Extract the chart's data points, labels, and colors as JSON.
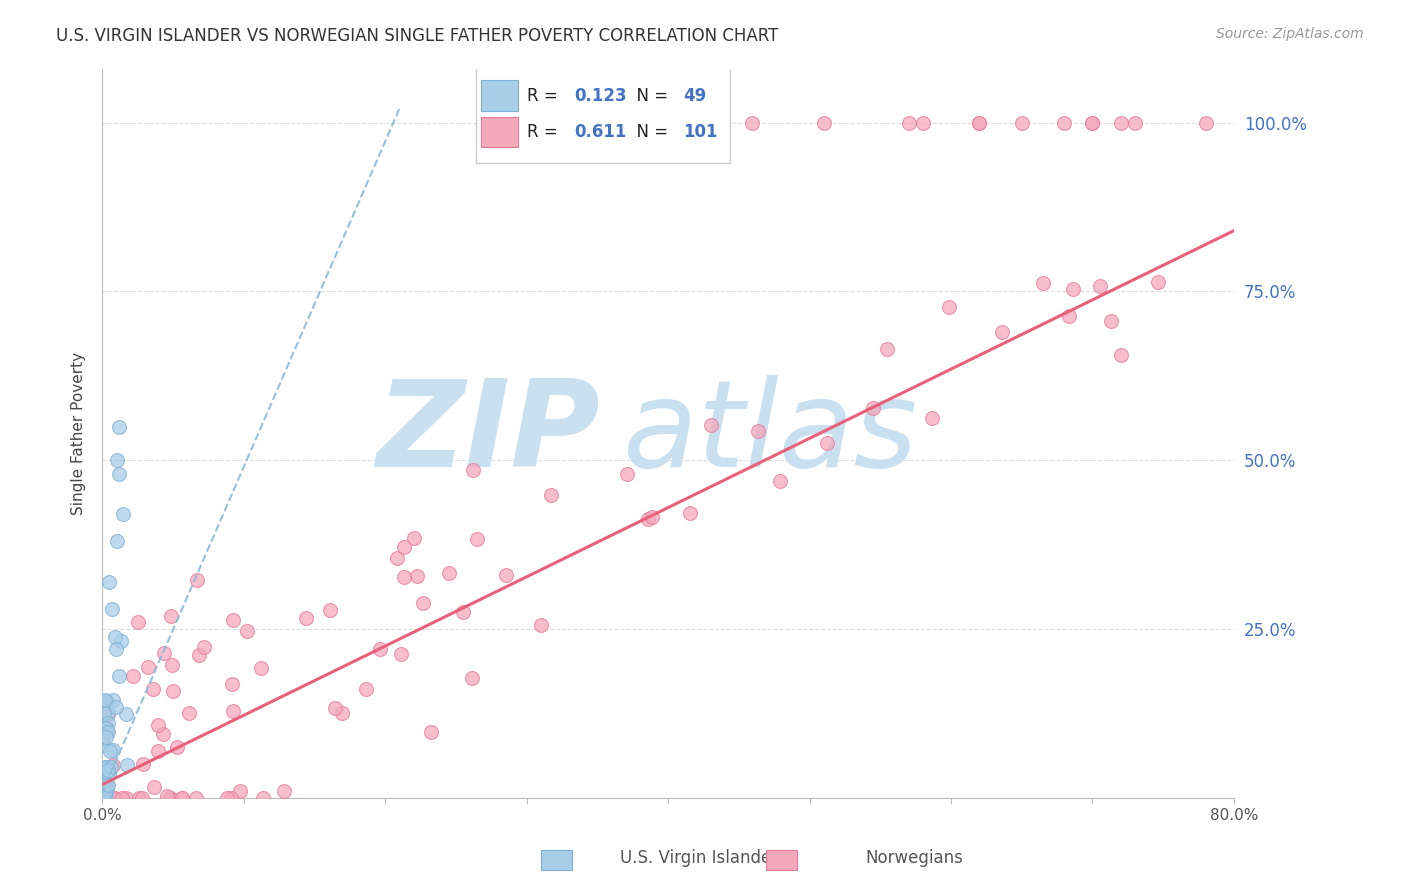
{
  "title": "U.S. VIRGIN ISLANDER VS NORWEGIAN SINGLE FATHER POVERTY CORRELATION CHART",
  "source": "Source: ZipAtlas.com",
  "ylabel": "Single Father Poverty",
  "xlabel_blue": "U.S. Virgin Islanders",
  "xlabel_pink": "Norwegians",
  "r_blue": 0.123,
  "n_blue": 49,
  "r_pink": 0.611,
  "n_pink": 101,
  "xmin": 0.0,
  "xmax": 0.8,
  "ymin": 0.0,
  "ymax": 1.08,
  "color_blue": "#a8cde8",
  "color_blue_edge": "#7bafd4",
  "color_pink": "#f4a8bc",
  "color_pink_edge": "#e87898",
  "color_pink_line": "#e8607a",
  "color_blue_line": "#88bbd8",
  "watermark_zip_color": "#c8e0f0",
  "watermark_atlas_color": "#c8e0f0",
  "title_color": "#333333",
  "source_color": "#999999",
  "ylabel_color": "#444444",
  "right_tick_color": "#4472c4",
  "xtick_color": "#555555",
  "legend_text_color": "#222222",
  "legend_value_color": "#4472c4",
  "grid_color": "#dddddd"
}
